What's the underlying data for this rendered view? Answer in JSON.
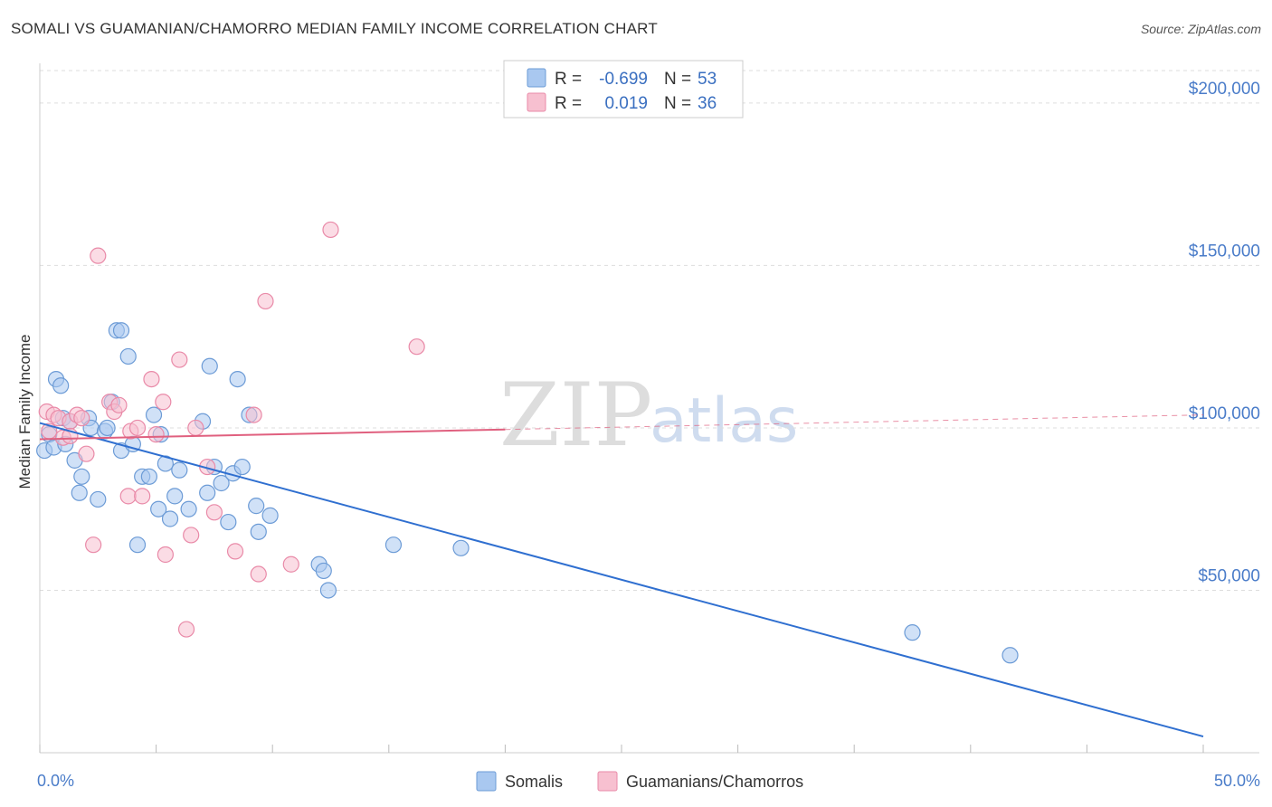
{
  "title": "SOMALI VS GUAMANIAN/CHAMORRO MEDIAN FAMILY INCOME CORRELATION CHART",
  "source": "Source: ZipAtlas.com",
  "watermark": {
    "part1": "ZIP",
    "part2": "atlas"
  },
  "legend": {
    "rows": [
      {
        "r_label": "R =",
        "r_value": "-0.699",
        "n_label": "N =",
        "n_value": "53",
        "color": "#a9c8f0",
        "stroke": "#6c9bd6"
      },
      {
        "r_label": "R =",
        "r_value": "0.019",
        "n_label": "N =",
        "n_value": "36",
        "color": "#f7c0d0",
        "stroke": "#e98aa8"
      }
    ]
  },
  "bottom_legend": [
    {
      "label": "Somalis",
      "color": "#a9c8f0",
      "stroke": "#6c9bd6"
    },
    {
      "label": "Guamanians/Chamorros",
      "color": "#f7c0d0",
      "stroke": "#e98aa8"
    }
  ],
  "chart_data": {
    "type": "scatter",
    "title": "SOMALI VS GUAMANIAN/CHAMORRO MEDIAN FAMILY INCOME CORRELATION CHART",
    "xlabel": "",
    "ylabel": "Median Family Income",
    "xlim": [
      0,
      50
    ],
    "ylim": [
      0,
      210000
    ],
    "x_tick_labels": [
      {
        "value": 0,
        "label": "0.0%"
      },
      {
        "value": 50,
        "label": "50.0%"
      }
    ],
    "y_tick_labels": [
      {
        "value": 50000,
        "label": "$50,000"
      },
      {
        "value": 100000,
        "label": "$100,000"
      },
      {
        "value": 150000,
        "label": "$150,000"
      },
      {
        "value": 200000,
        "label": "$200,000"
      }
    ],
    "series": [
      {
        "name": "Somalis",
        "color": "#6c9bd6",
        "fill": "#a9c8f0",
        "trend": {
          "x0": 0,
          "y0": 101500,
          "x1": 50,
          "y1": 5000,
          "color": "#2f6fd0",
          "dashed_from": null
        },
        "points": [
          [
            0.2,
            93000
          ],
          [
            0.4,
            98000
          ],
          [
            0.6,
            94000
          ],
          [
            0.7,
            115000
          ],
          [
            0.9,
            113000
          ],
          [
            1.0,
            103000
          ],
          [
            1.1,
            95000
          ],
          [
            1.3,
            102000
          ],
          [
            1.5,
            90000
          ],
          [
            1.7,
            80000
          ],
          [
            1.8,
            85000
          ],
          [
            2.1,
            103000
          ],
          [
            2.2,
            100000
          ],
          [
            2.5,
            78000
          ],
          [
            2.8,
            99000
          ],
          [
            2.9,
            100000
          ],
          [
            3.1,
            108000
          ],
          [
            3.3,
            130000
          ],
          [
            3.5,
            130000
          ],
          [
            3.5,
            93000
          ],
          [
            3.8,
            122000
          ],
          [
            4.0,
            95000
          ],
          [
            4.2,
            64000
          ],
          [
            4.4,
            85000
          ],
          [
            4.7,
            85000
          ],
          [
            4.9,
            104000
          ],
          [
            5.1,
            75000
          ],
          [
            5.2,
            98000
          ],
          [
            5.4,
            89000
          ],
          [
            5.6,
            72000
          ],
          [
            5.8,
            79000
          ],
          [
            6.0,
            87000
          ],
          [
            6.4,
            75000
          ],
          [
            7.0,
            102000
          ],
          [
            7.2,
            80000
          ],
          [
            7.3,
            119000
          ],
          [
            7.5,
            88000
          ],
          [
            7.8,
            83000
          ],
          [
            8.1,
            71000
          ],
          [
            8.3,
            86000
          ],
          [
            8.5,
            115000
          ],
          [
            8.7,
            88000
          ],
          [
            9.0,
            104000
          ],
          [
            9.3,
            76000
          ],
          [
            9.4,
            68000
          ],
          [
            9.9,
            73000
          ],
          [
            12.0,
            58000
          ],
          [
            12.2,
            56000
          ],
          [
            12.4,
            50000
          ],
          [
            15.2,
            64000
          ],
          [
            18.1,
            63000
          ],
          [
            37.5,
            37000
          ],
          [
            41.7,
            30000
          ]
        ]
      },
      {
        "name": "Guamanians/Chamorros",
        "color": "#e98aa8",
        "fill": "#f7c0d0",
        "trend": {
          "x0": 0,
          "y0": 96500,
          "x1": 50,
          "y1": 104000,
          "color": "#e0607f",
          "dashed_from": 20
        },
        "points": [
          [
            0.3,
            105000
          ],
          [
            0.4,
            99000
          ],
          [
            0.6,
            104000
          ],
          [
            0.8,
            103000
          ],
          [
            1.0,
            97000
          ],
          [
            1.3,
            102000
          ],
          [
            1.6,
            104000
          ],
          [
            1.8,
            103000
          ],
          [
            2.0,
            92000
          ],
          [
            2.3,
            64000
          ],
          [
            2.5,
            153000
          ],
          [
            3.0,
            108000
          ],
          [
            3.2,
            105000
          ],
          [
            3.4,
            107000
          ],
          [
            3.8,
            79000
          ],
          [
            3.9,
            99000
          ],
          [
            4.2,
            100000
          ],
          [
            4.4,
            79000
          ],
          [
            4.8,
            115000
          ],
          [
            5.0,
            98000
          ],
          [
            5.3,
            108000
          ],
          [
            5.4,
            61000
          ],
          [
            6.0,
            121000
          ],
          [
            6.3,
            38000
          ],
          [
            6.5,
            67000
          ],
          [
            6.7,
            100000
          ],
          [
            7.2,
            88000
          ],
          [
            7.5,
            74000
          ],
          [
            8.4,
            62000
          ],
          [
            9.2,
            104000
          ],
          [
            9.4,
            55000
          ],
          [
            9.7,
            139000
          ],
          [
            10.8,
            58000
          ],
          [
            12.5,
            161000
          ],
          [
            16.2,
            125000
          ],
          [
            1.3,
            97500
          ]
        ]
      }
    ]
  }
}
